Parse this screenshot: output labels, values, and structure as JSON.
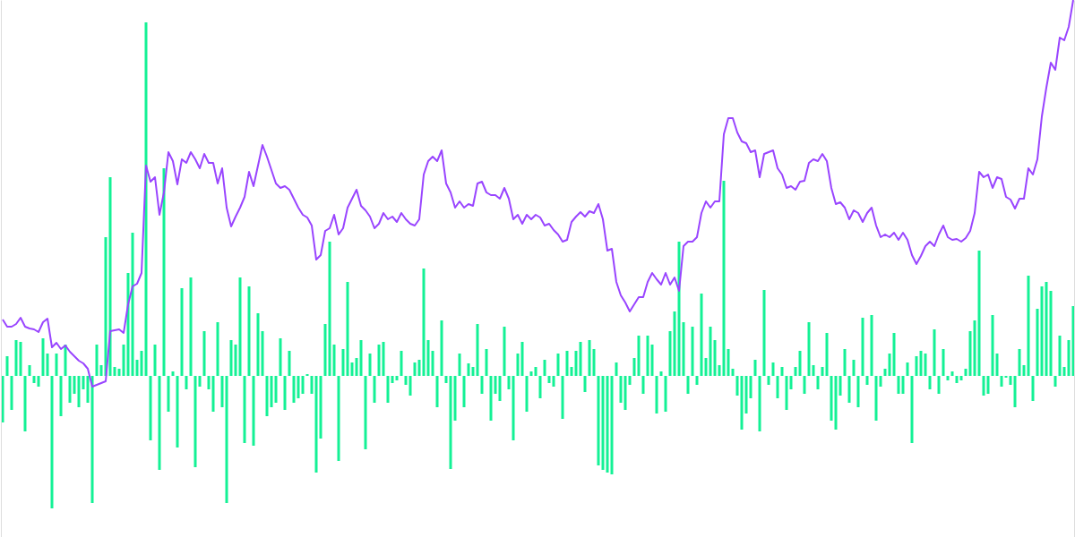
{
  "chart_data": {
    "type": "combo",
    "tick_labels": false,
    "ylim": [
      0,
      600
    ],
    "y2lim": [
      -180,
      420
    ],
    "series": [
      {
        "type": "bar",
        "axis": "y2",
        "color": "#14f195",
        "values": [
          -52,
          22,
          -38,
          40,
          38,
          -62,
          12,
          -8,
          -12,
          42,
          25,
          -148,
          25,
          -45,
          35,
          -30,
          -20,
          -35,
          -15,
          -30,
          -142,
          35,
          12,
          155,
          222,
          10,
          8,
          35,
          115,
          160,
          18,
          28,
          395,
          -72,
          35,
          -105,
          232,
          -40,
          5,
          -80,
          98,
          -15,
          110,
          -102,
          -12,
          50,
          -15,
          -40,
          60,
          -35,
          -142,
          40,
          35,
          110,
          -75,
          100,
          -78,
          70,
          50,
          -45,
          -35,
          -30,
          42,
          -38,
          28,
          -30,
          -25,
          -20,
          2,
          -20,
          -108,
          -70,
          58,
          150,
          35,
          -95,
          30,
          105,
          15,
          20,
          40,
          -82,
          25,
          -30,
          35,
          38,
          -30,
          -8,
          -5,
          28,
          -10,
          -22,
          15,
          18,
          120,
          40,
          28,
          -35,
          62,
          -8,
          -104,
          -50,
          25,
          -35,
          14,
          10,
          58,
          -20,
          30,
          -50,
          -20,
          -28,
          55,
          -15,
          -72,
          25,
          38,
          -40,
          5,
          10,
          -25,
          18,
          -8,
          -12,
          25,
          -48,
          28,
          10,
          28,
          38,
          -18,
          40,
          30,
          -100,
          -105,
          -108,
          -110,
          15,
          -30,
          -38,
          -10,
          20,
          45,
          -20,
          45,
          35,
          -42,
          5,
          -40,
          50,
          72,
          150,
          60,
          -20,
          55,
          -10,
          92,
          20,
          55,
          40,
          12,
          218,
          30,
          8,
          -22,
          -60,
          -42,
          -25,
          18,
          -62,
          96,
          -10,
          15,
          -25,
          10,
          -38,
          -15,
          10,
          28,
          -20,
          60,
          12,
          -15,
          10,
          48,
          -50,
          -60,
          -22,
          30,
          -30,
          18,
          -35,
          65,
          -10,
          68,
          -50,
          -12,
          8,
          25,
          48,
          -20,
          -20,
          15,
          -75,
          22,
          28,
          25,
          -15,
          52,
          -20,
          30,
          -5,
          5,
          -8,
          -5,
          8,
          50,
          62,
          140,
          -22,
          -20,
          68,
          25,
          -12,
          -2,
          -10,
          -35,
          30,
          12,
          112,
          -28,
          75,
          100,
          105,
          95,
          -12,
          45,
          10,
          40,
          78
        ]
      },
      {
        "type": "line",
        "color": "#9945ff",
        "values": [
          243,
          235,
          235,
          238,
          245,
          235,
          233,
          232,
          229,
          240,
          244,
          212,
          217,
          210,
          214,
          207,
          202,
          197,
          194,
          188,
          168,
          170,
          172,
          174,
          230,
          231,
          232,
          228,
          260,
          280,
          283,
          295,
          415,
          397,
          402,
          360,
          385,
          430,
          420,
          394,
          422,
          418,
          430,
          422,
          412,
          428,
          418,
          418,
          395,
          412,
          368,
          347,
          358,
          368,
          380,
          408,
          392,
          415,
          438,
          425,
          410,
          395,
          390,
          392,
          388,
          378,
          368,
          360,
          357,
          348,
          310,
          315,
          342,
          345,
          360,
          338,
          345,
          368,
          378,
          388,
          370,
          365,
          358,
          345,
          350,
          362,
          355,
          358,
          352,
          362,
          355,
          350,
          348,
          355,
          405,
          420,
          425,
          420,
          432,
          395,
          385,
          368,
          375,
          368,
          372,
          370,
          395,
          397,
          385,
          382,
          382,
          378,
          390,
          378,
          355,
          360,
          350,
          360,
          355,
          360,
          357,
          348,
          350,
          343,
          338,
          330,
          332,
          352,
          358,
          363,
          358,
          364,
          362,
          372,
          355,
          320,
          322,
          285,
          270,
          262,
          252,
          260,
          268,
          268,
          285,
          295,
          288,
          282,
          295,
          282,
          290,
          275,
          325,
          330,
          330,
          335,
          362,
          375,
          368,
          375,
          375,
          450,
          468,
          468,
          452,
          442,
          440,
          430,
          432,
          402,
          428,
          430,
          432,
          412,
          405,
          390,
          392,
          388,
          397,
          398,
          418,
          422,
          420,
          428,
          420,
          390,
          372,
          374,
          368,
          355,
          365,
          362,
          352,
          362,
          368,
          348,
          335,
          338,
          335,
          340,
          332,
          340,
          332,
          315,
          305,
          314,
          325,
          330,
          325,
          338,
          348,
          335,
          332,
          333,
          330,
          334,
          342,
          362,
          408,
          402,
          405,
          390,
          402,
          400,
          380,
          377,
          367,
          378,
          378,
          412,
          405,
          422,
          470,
          502,
          530,
          522,
          558,
          555,
          570,
          600
        ]
      }
    ]
  }
}
